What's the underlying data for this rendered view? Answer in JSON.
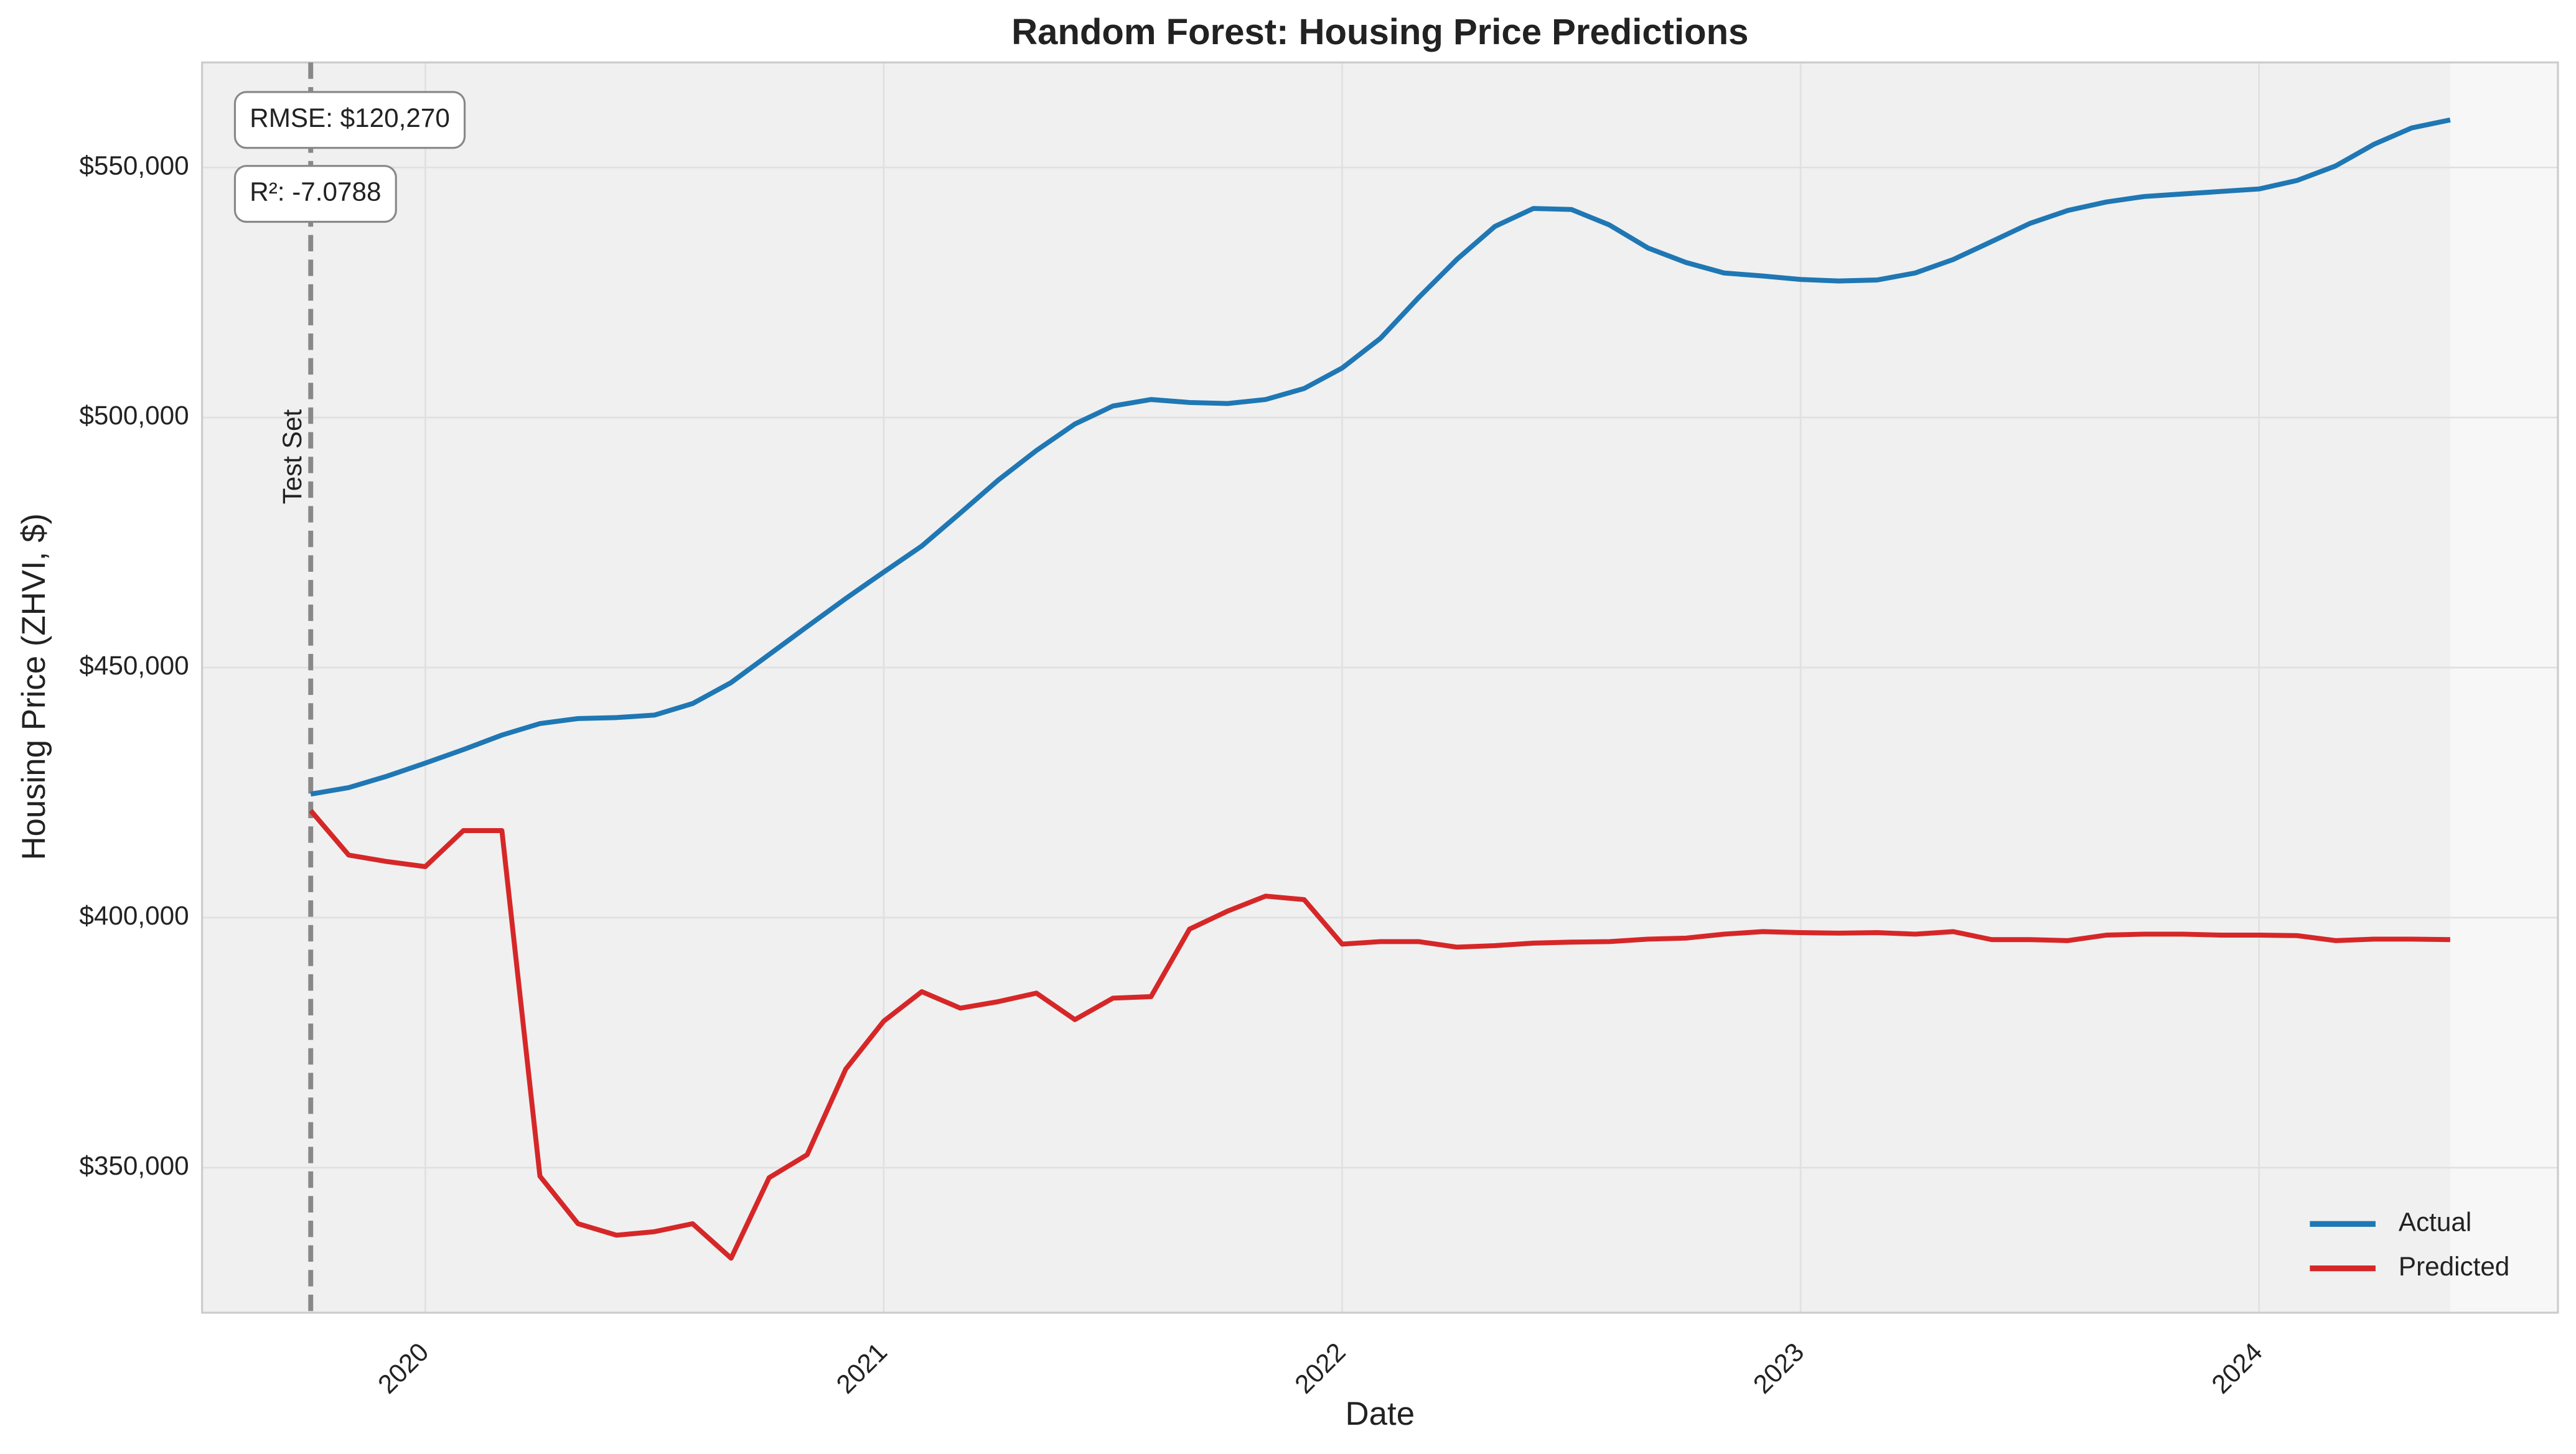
{
  "chart_data": {
    "type": "line",
    "title": "Random Forest: Housing Price Predictions",
    "x_label": "Date",
    "y_label": "Housing Price (ZHVI, $)",
    "x": [
      2019.75,
      2019.833,
      2019.917,
      2020,
      2020.083,
      2020.167,
      2020.25,
      2020.333,
      2020.417,
      2020.5,
      2020.583,
      2020.667,
      2020.75,
      2020.833,
      2020.917,
      2021,
      2021.083,
      2021.167,
      2021.25,
      2021.333,
      2021.417,
      2021.5,
      2021.583,
      2021.667,
      2021.75,
      2021.833,
      2021.917,
      2022,
      2022.083,
      2022.167,
      2022.25,
      2022.333,
      2022.417,
      2022.5,
      2022.583,
      2022.667,
      2022.75,
      2022.833,
      2022.917,
      2023,
      2023.083,
      2023.167,
      2023.25,
      2023.333,
      2023.417,
      2023.5,
      2023.583,
      2023.667,
      2023.75,
      2023.833,
      2023.917,
      2024,
      2024.083,
      2024.167,
      2024.25,
      2024.333,
      2024.417
    ],
    "series": [
      {
        "name": "Actual",
        "color": "#1f77b4",
        "values": [
          424700,
          426000,
          428300,
          430900,
          433600,
          436500,
          438800,
          439800,
          440000,
          440500,
          442800,
          447000,
          452600,
          458200,
          463800,
          469100,
          474300,
          480900,
          487500,
          493400,
          498700,
          502300,
          503600,
          503000,
          502800,
          503600,
          505800,
          509900,
          515800,
          524000,
          531600,
          538200,
          541800,
          541600,
          538500,
          533900,
          531000,
          528900,
          528300,
          527600,
          527300,
          527500,
          528900,
          531600,
          535200,
          538800,
          541400,
          543100,
          544200,
          544700,
          545200,
          545700,
          547400,
          550300,
          554600,
          557900,
          559500
        ]
      },
      {
        "name": "Predicted",
        "color": "#d62728",
        "values": [
          421400,
          412500,
          411200,
          410200,
          417400,
          417400,
          348300,
          338800,
          336500,
          337200,
          338800,
          331900,
          348000,
          352600,
          369700,
          379300,
          385200,
          381900,
          383200,
          384900,
          379600,
          383900,
          384200,
          397700,
          401300,
          404300,
          403600,
          394700,
          395200,
          395200,
          394100,
          394400,
          394900,
          395100,
          395200,
          395700,
          395900,
          396700,
          397200,
          397000,
          396900,
          397000,
          396700,
          397200,
          395600,
          395600,
          395400,
          396500,
          396700,
          396700,
          396500,
          396500,
          396400,
          395400,
          395700,
          395700,
          395600
        ]
      }
    ],
    "xlim": [
      2019.513,
      2024.652
    ],
    "xticks": [
      2020,
      2021,
      2022,
      2023,
      2024
    ],
    "ylim": [
      321000,
      571000
    ],
    "yticks": [
      {
        "value": 350000,
        "label": "$350,000"
      },
      {
        "value": 400000,
        "label": "$400,000"
      },
      {
        "value": 450000,
        "label": "$450,000"
      },
      {
        "value": 500000,
        "label": "$500,000"
      },
      {
        "value": 550000,
        "label": "$550,000"
      }
    ],
    "grid": true,
    "legend": "lower right",
    "test_start": {
      "value": 2019.75,
      "label": "Test Set"
    },
    "annotations": [
      "RMSE: $120,270",
      "R²: -7.0788"
    ]
  }
}
